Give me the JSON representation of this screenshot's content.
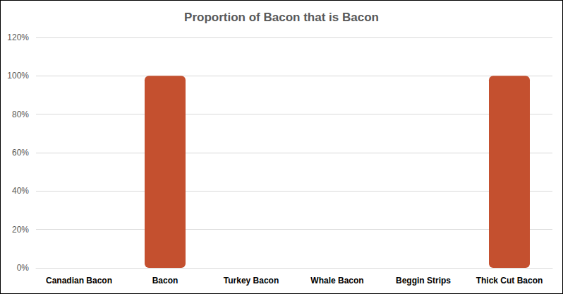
{
  "chart_data": {
    "type": "bar",
    "title": "Proportion of Bacon that is Bacon",
    "categories": [
      "Canadian Bacon",
      "Bacon",
      "Turkey Bacon",
      "Whale Bacon",
      "Beggin Strips",
      "Thick Cut Bacon"
    ],
    "values": [
      0,
      100,
      0,
      0,
      0,
      100
    ],
    "color": "#c4502f",
    "ylim": [
      0,
      120
    ],
    "yticks": [
      {
        "value": 0,
        "label": "0%"
      },
      {
        "value": 20,
        "label": "20%"
      },
      {
        "value": 40,
        "label": "40%"
      },
      {
        "value": 60,
        "label": "60%"
      },
      {
        "value": 80,
        "label": "80%"
      },
      {
        "value": 100,
        "label": "100%"
      },
      {
        "value": 120,
        "label": "120%"
      }
    ],
    "grid": true
  }
}
